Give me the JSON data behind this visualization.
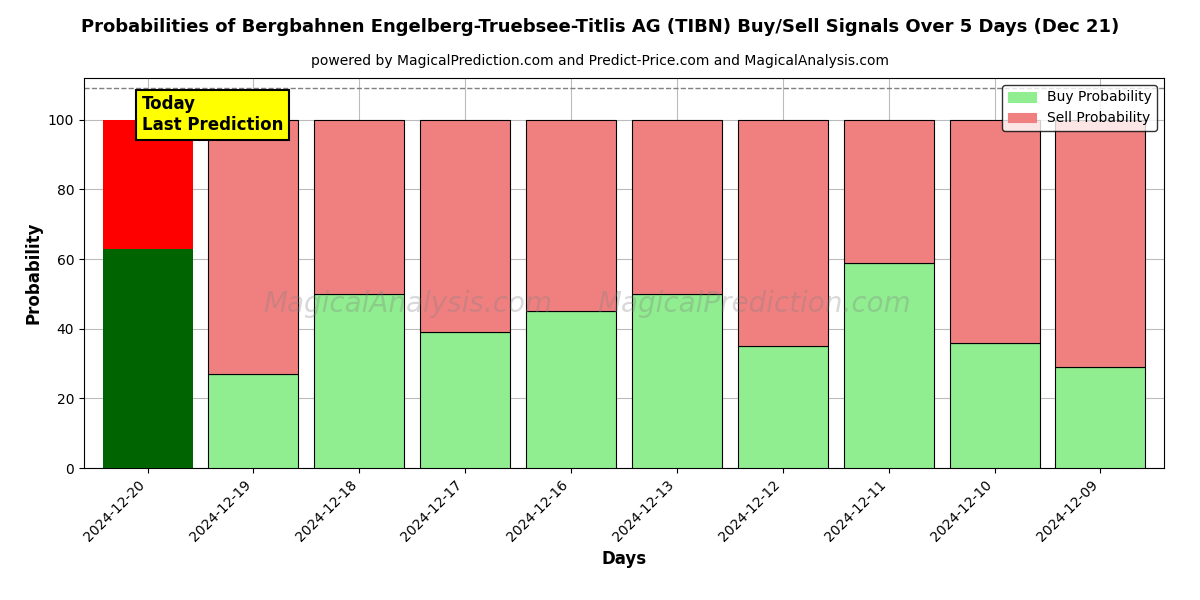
{
  "title": "Probabilities of Bergbahnen Engelberg-Truebsee-Titlis AG (TIBN) Buy/Sell Signals Over 5 Days (Dec 21)",
  "subtitle": "powered by MagicalPrediction.com and Predict-Price.com and MagicalAnalysis.com",
  "xlabel": "Days",
  "ylabel": "Probability",
  "dates": [
    "2024-12-20",
    "2024-12-19",
    "2024-12-18",
    "2024-12-17",
    "2024-12-16",
    "2024-12-13",
    "2024-12-12",
    "2024-12-11",
    "2024-12-10",
    "2024-12-09"
  ],
  "buy_values": [
    63,
    27,
    50,
    39,
    45,
    50,
    35,
    59,
    36,
    29
  ],
  "sell_values": [
    37,
    73,
    50,
    61,
    55,
    50,
    65,
    41,
    64,
    71
  ],
  "today_buy_color": "#006400",
  "today_sell_color": "#FF0000",
  "buy_color": "#90EE90",
  "sell_color": "#F08080",
  "today_annotation_bg": "#FFFF00",
  "today_annotation_text": "Today\nLast Prediction",
  "ylim": [
    0,
    112
  ],
  "dashed_line_y": 109,
  "watermark_left": "MagicalAnalysis.com",
  "watermark_right": "MagicalPrediction.com",
  "background_color": "#ffffff",
  "grid_color": "#bbbbbb",
  "legend_label_buy": "Buy Probability",
  "legend_label_sell": "Sell Probability"
}
